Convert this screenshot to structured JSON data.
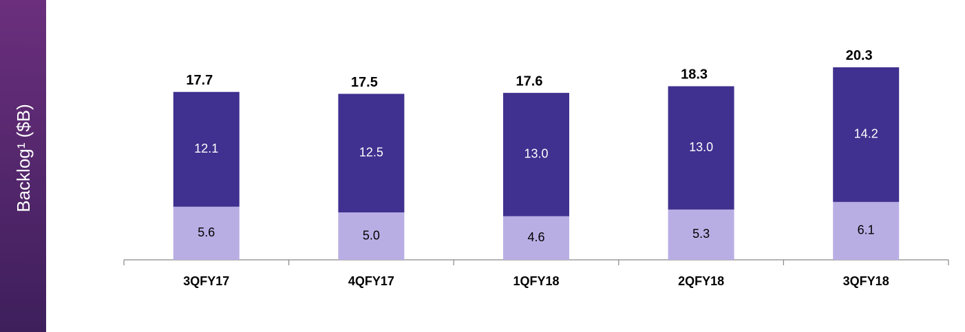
{
  "chart_data": {
    "type": "stacked_bar",
    "ylabel": "Backlog¹ ($B)",
    "categories": [
      "3QFY17",
      "4QFY17",
      "1QFY18",
      "2QFY18",
      "3QFY18"
    ],
    "series": [
      {
        "color": "#b9aee4",
        "values": [
          5.6,
          5.0,
          4.6,
          5.3,
          6.1
        ],
        "value_labels": [
          "5.6",
          "5.0",
          "4.6",
          "5.3",
          "6.1"
        ]
      },
      {
        "color": "#40308f",
        "values": [
          12.1,
          12.5,
          13.0,
          13.0,
          14.2
        ],
        "value_labels": [
          "12.1",
          "12.5",
          "13.0",
          "13.0",
          "14.2"
        ]
      }
    ],
    "totals": [
      17.7,
      17.5,
      17.6,
      18.3,
      20.3
    ],
    "ylim": [
      0,
      25
    ]
  }
}
